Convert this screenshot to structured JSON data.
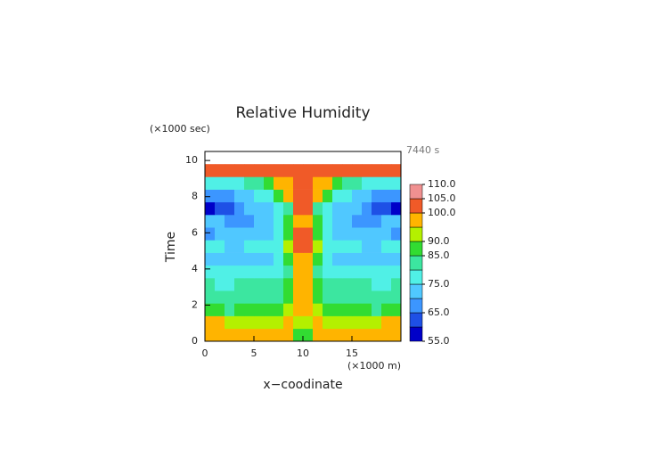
{
  "chart_data": {
    "type": "contour",
    "title": "Relative Humidity",
    "y_unit": "(×1000 sec)",
    "x_unit": "(×1000 m)",
    "annotation": "7440 s",
    "ylabel": "Time",
    "xlabel": "x−coodinate",
    "xlim": [
      0,
      20
    ],
    "ylim": [
      0,
      10.5
    ],
    "xticks": [
      0,
      5,
      10,
      15
    ],
    "yticks": [
      0,
      2,
      4,
      6,
      8,
      10
    ],
    "x_bins": [
      0,
      1,
      2,
      3,
      4,
      5,
      6,
      7,
      8,
      9,
      10,
      11,
      12,
      13,
      14,
      15,
      16,
      17,
      18,
      19,
      20
    ],
    "y_bins": [
      0,
      0.7,
      1.4,
      2.1,
      2.8,
      3.5,
      4.2,
      4.9,
      5.6,
      6.3,
      7.0,
      7.7,
      8.4,
      9.1,
      9.8
    ],
    "z": [
      [
        97,
        96,
        98,
        97,
        97,
        97,
        97,
        97,
        96,
        86,
        86,
        96,
        97,
        97,
        97,
        97,
        97,
        98,
        96,
        97
      ],
      [
        95,
        95,
        94,
        92,
        92,
        92,
        93,
        94,
        96,
        93,
        93,
        96,
        94,
        93,
        92,
        92,
        92,
        94,
        95,
        95
      ],
      [
        88,
        86,
        84,
        85,
        86,
        85,
        86,
        88,
        92,
        95,
        95,
        92,
        88,
        86,
        85,
        86,
        85,
        84,
        86,
        88
      ],
      [
        84,
        83,
        82,
        82,
        83,
        83,
        83,
        84,
        87,
        97,
        97,
        87,
        84,
        83,
        83,
        83,
        82,
        82,
        83,
        84
      ],
      [
        80,
        79,
        78,
        80,
        81,
        81,
        81,
        82,
        86,
        97,
        97,
        86,
        82,
        81,
        81,
        81,
        80,
        78,
        79,
        80
      ],
      [
        76,
        76,
        75,
        76,
        76,
        76,
        77,
        78,
        84,
        98,
        98,
        84,
        78,
        77,
        76,
        76,
        76,
        75,
        76,
        76
      ],
      [
        74,
        74,
        71,
        70,
        70,
        72,
        74,
        76,
        85,
        98,
        98,
        85,
        76,
        74,
        72,
        70,
        70,
        71,
        74,
        74
      ],
      [
        76,
        75,
        74,
        74,
        75,
        76,
        76,
        78,
        92,
        100,
        100,
        92,
        78,
        76,
        76,
        75,
        74,
        74,
        75,
        76
      ],
      [
        68,
        70,
        72,
        73,
        74,
        74,
        74,
        76,
        88,
        100,
        100,
        88,
        76,
        74,
        74,
        74,
        73,
        72,
        70,
        68
      ],
      [
        72,
        70,
        68,
        67,
        68,
        72,
        74,
        76,
        86,
        99,
        99,
        86,
        76,
        74,
        72,
        68,
        67,
        68,
        70,
        72
      ],
      [
        58,
        62,
        64,
        66,
        70,
        72,
        74,
        76,
        84,
        100,
        100,
        84,
        76,
        74,
        72,
        70,
        66,
        64,
        62,
        58
      ],
      [
        66,
        66,
        68,
        72,
        74,
        76,
        78,
        86,
        98,
        100,
        100,
        98,
        86,
        78,
        76,
        74,
        72,
        68,
        66,
        66
      ],
      [
        78,
        76,
        76,
        77,
        80,
        84,
        88,
        98,
        99,
        100,
        100,
        99,
        98,
        88,
        84,
        80,
        77,
        76,
        76,
        78
      ],
      [
        101,
        101,
        101,
        101,
        101,
        101,
        101,
        101,
        101,
        101,
        101,
        101,
        101,
        101,
        101,
        101,
        101,
        101,
        101,
        101
      ]
    ],
    "levels": [
      55,
      60,
      65,
      70,
      75,
      80,
      85,
      90,
      95,
      100,
      105,
      110
    ],
    "colors": [
      "#0000c8",
      "#1e50e6",
      "#3c96ff",
      "#50c8ff",
      "#50f0e6",
      "#3ce6a0",
      "#32dc32",
      "#b4f000",
      "#ffb400",
      "#f05a28",
      "#f09090"
    ],
    "colorbar_ticks": [
      {
        "value": 110,
        "label": "110.0"
      },
      {
        "value": 105,
        "label": "105.0"
      },
      {
        "value": 100,
        "label": "100.0"
      },
      {
        "value": 90,
        "label": "90.0"
      },
      {
        "value": 85,
        "label": "85.0"
      },
      {
        "value": 75,
        "label": "75.0"
      },
      {
        "value": 65,
        "label": "65.0"
      },
      {
        "value": 55,
        "label": "55.0"
      }
    ]
  }
}
